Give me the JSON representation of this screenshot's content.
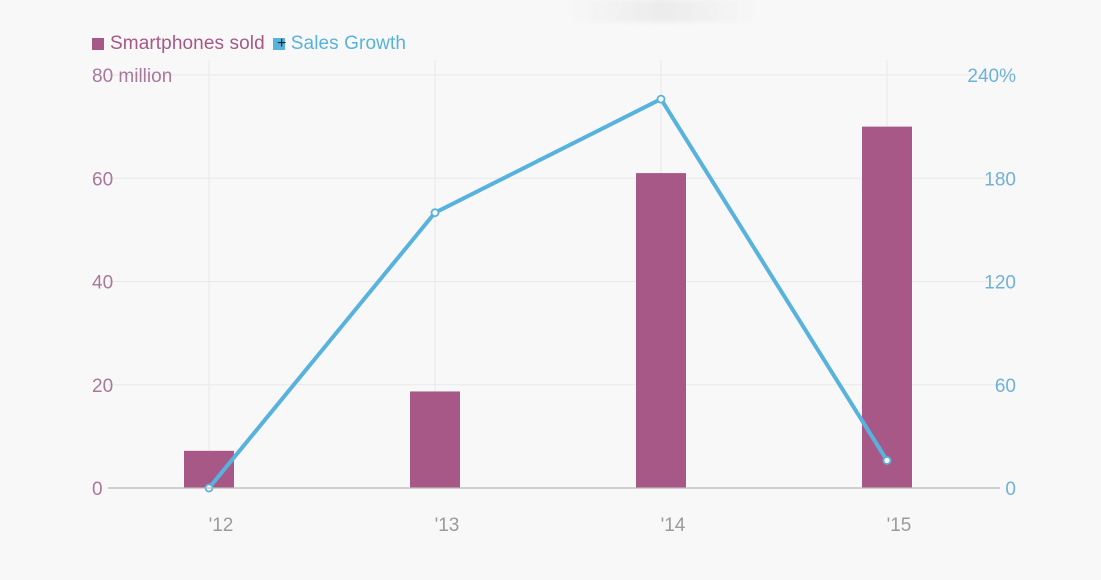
{
  "chart_data": {
    "type": "bar",
    "categories": [
      "'12",
      "'13",
      "'14",
      "'15"
    ],
    "series": [
      {
        "name": "Smartphones sold",
        "type": "bar",
        "axis": "left",
        "color": "#a85887",
        "values": [
          7.2,
          18.7,
          61,
          70
        ]
      },
      {
        "name": "Sales Growth",
        "type": "line",
        "axis": "right",
        "color": "#58b2de",
        "values": [
          0,
          160,
          226,
          16
        ]
      }
    ],
    "left_axis": {
      "ylim": [
        0,
        80
      ],
      "ticks": [
        0,
        20,
        40,
        60,
        80
      ],
      "tick_labels": [
        "0",
        "20",
        "40",
        "60",
        "80 million"
      ]
    },
    "right_axis": {
      "ylim": [
        0,
        240
      ],
      "ticks": [
        0,
        60,
        120,
        180,
        240
      ],
      "tick_labels": [
        "0",
        "60",
        "120",
        "180",
        "240%"
      ]
    },
    "grid": true,
    "legend_position": "top-left",
    "title": "",
    "xlabel": "",
    "ylabel": ""
  },
  "colors": {
    "background": "#f8f8f8",
    "bars": "#a85887",
    "line": "#58b2de",
    "left_axis_text": "#a9789b",
    "right_axis_text": "#6fb2d8",
    "x_axis_text": "#9b9b9b",
    "grid": "#e9e9e9",
    "baseline": "#b7b7b7"
  }
}
